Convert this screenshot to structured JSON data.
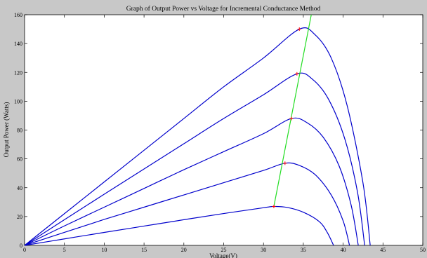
{
  "chart_data": {
    "type": "line",
    "title": "Graph of Output Power vs Voltage for Incremental Conductance Method",
    "xlabel": "Voltage(V)",
    "ylabel": "Output Power (Watts)",
    "xlim": [
      0,
      50
    ],
    "ylim": [
      0,
      160
    ],
    "xticks": [
      0,
      5,
      10,
      15,
      20,
      25,
      30,
      35,
      40,
      45,
      50
    ],
    "yticks": [
      0,
      20,
      40,
      60,
      80,
      100,
      120,
      140,
      160
    ],
    "grid": false,
    "legend": "none",
    "colors": {
      "curves": "#0000cc",
      "mpp_track": "#22dd22",
      "mpp_marker": "#ff0000",
      "axes_bg": "#ffffff",
      "figure_bg": "#c8c8c8"
    },
    "series": [
      {
        "x": [
          0,
          5,
          10,
          15,
          20,
          25,
          30,
          31.3,
          33,
          35,
          37,
          38,
          38.8
        ],
        "y": [
          0,
          4.5,
          9,
          13.4,
          17.8,
          22.1,
          26.1,
          27,
          26.3,
          23,
          16.5,
          9,
          0
        ]
      },
      {
        "x": [
          0,
          5,
          10,
          15,
          20,
          25,
          30,
          32.7,
          34.5,
          36.5,
          38.5,
          40,
          40.8
        ],
        "y": [
          0,
          9,
          18,
          26.5,
          35,
          43.5,
          52,
          57,
          55.5,
          49,
          35,
          17,
          0
        ]
      },
      {
        "x": [
          0,
          5,
          10,
          15,
          20,
          25,
          30,
          33.5,
          35.5,
          37.5,
          39.5,
          41,
          41.9
        ],
        "y": [
          0,
          13.5,
          26.5,
          39.5,
          52.5,
          65,
          77.5,
          88,
          85,
          75,
          55,
          28,
          0
        ]
      },
      {
        "x": [
          0,
          5,
          10,
          15,
          20,
          25,
          30,
          34.2,
          36.2,
          38.2,
          40.2,
          41.8,
          42.7
        ],
        "y": [
          0,
          17.8,
          35.5,
          53,
          70.5,
          88,
          104.5,
          119,
          115,
          101,
          74,
          37,
          0
        ]
      },
      {
        "x": [
          0,
          5,
          10,
          15,
          20,
          25,
          30,
          34.5,
          36.5,
          38.5,
          40.5,
          42.5,
          43.4
        ],
        "y": [
          0,
          22,
          44,
          66,
          88,
          110,
          130,
          150,
          146,
          130,
          97,
          43,
          0
        ]
      }
    ],
    "mpp_track": {
      "x": [
        31.3,
        36
      ],
      "y": [
        27,
        160
      ]
    },
    "mpp_points": {
      "x": [
        31.3,
        32.7,
        33.5,
        34.2,
        34.5
      ],
      "y": [
        27,
        57,
        88,
        119,
        150
      ]
    }
  }
}
